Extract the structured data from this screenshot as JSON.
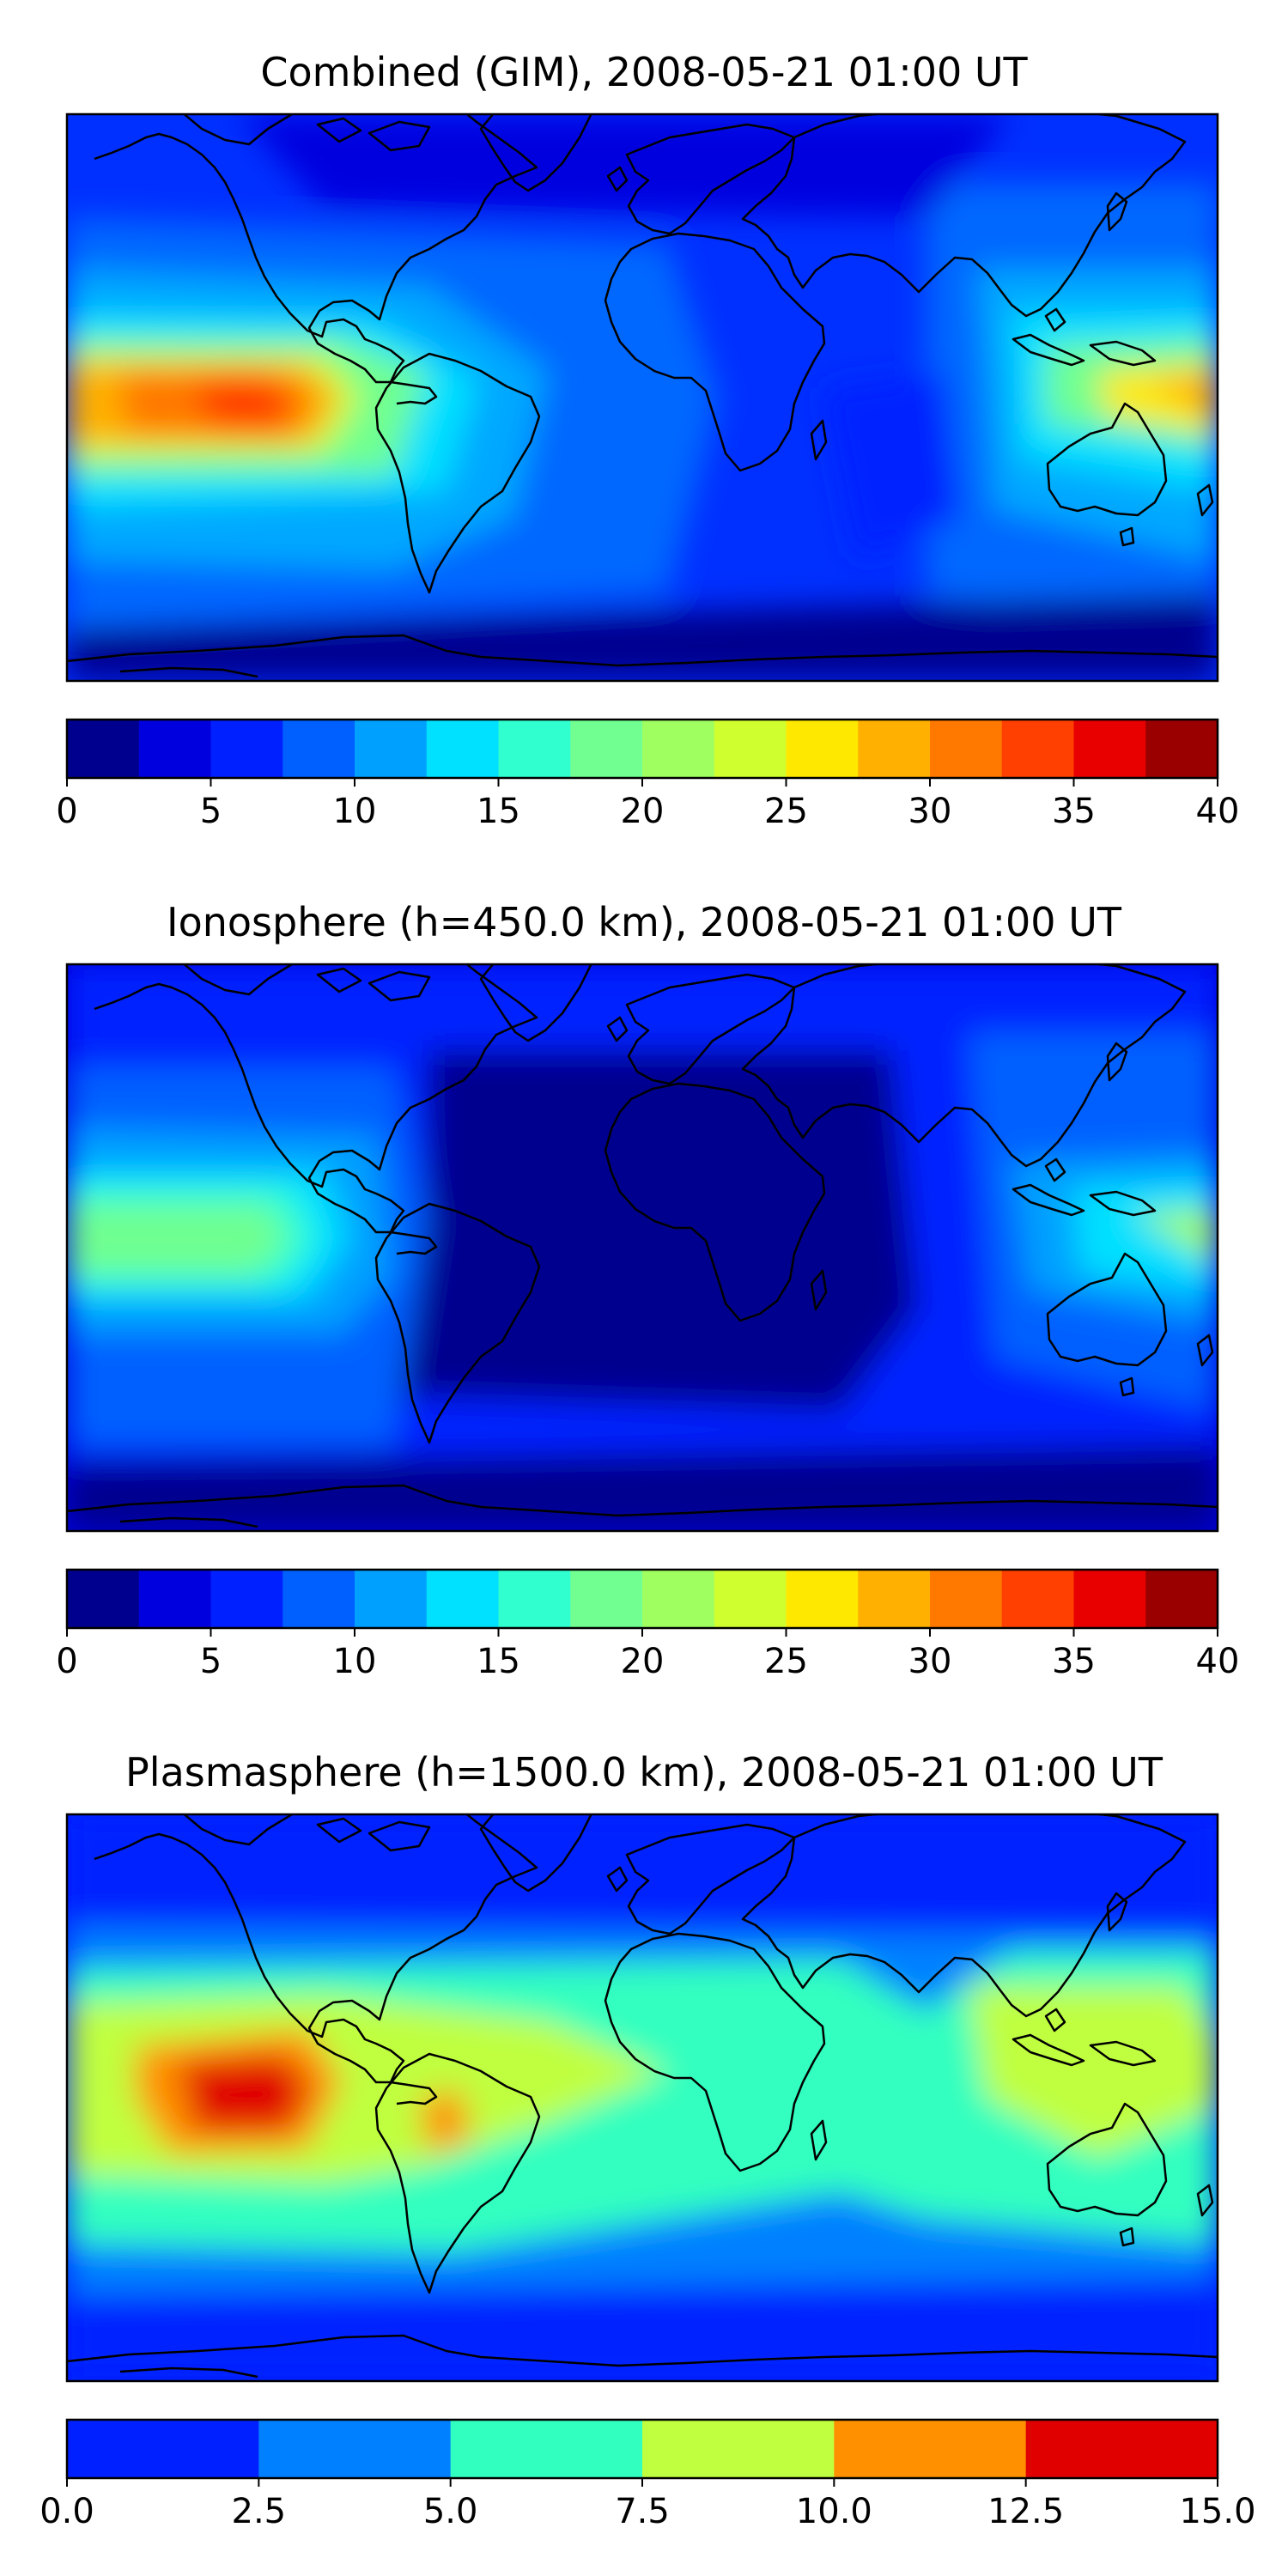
{
  "panels": [
    {
      "id": "combined",
      "title": "Combined (GIM), 2008-05-21 01:00 UT",
      "colorbar": {
        "ticks": [
          "0",
          "5",
          "10",
          "15",
          "20",
          "25",
          "30",
          "35",
          "40"
        ],
        "range": [
          0,
          40
        ],
        "colors": [
          "#00008f",
          "#0000df",
          "#0020ff",
          "#0060ff",
          "#00a0ff",
          "#00e0ff",
          "#30ffd0",
          "#70ff90",
          "#a0ff60",
          "#d0ff30",
          "#ffe800",
          "#ffb000",
          "#ff7800",
          "#ff4000",
          "#e80000",
          "#9a0000"
        ]
      }
    },
    {
      "id": "ionosphere",
      "title": "Ionosphere  (h=450.0 km), 2008-05-21 01:00 UT",
      "colorbar": {
        "ticks": [
          "0",
          "5",
          "10",
          "15",
          "20",
          "25",
          "30",
          "35",
          "40"
        ],
        "range": [
          0,
          40
        ],
        "colors": [
          "#00008f",
          "#0000df",
          "#0020ff",
          "#0060ff",
          "#00a0ff",
          "#00e0ff",
          "#30ffd0",
          "#70ff90",
          "#a0ff60",
          "#d0ff30",
          "#ffe800",
          "#ffb000",
          "#ff7800",
          "#ff4000",
          "#e80000",
          "#9a0000"
        ]
      }
    },
    {
      "id": "plasmasphere",
      "title": "Plasmasphere (h=1500.0 km), 2008-05-21 01:00 UT",
      "colorbar": {
        "ticks": [
          "0.0",
          "2.5",
          "5.0",
          "7.5",
          "10.0",
          "12.5",
          "15.0"
        ],
        "range": [
          0,
          15
        ],
        "colors": [
          "#0020ff",
          "#0080ff",
          "#30ffc0",
          "#c0ff40",
          "#ff9000",
          "#e00000"
        ]
      }
    }
  ]
}
